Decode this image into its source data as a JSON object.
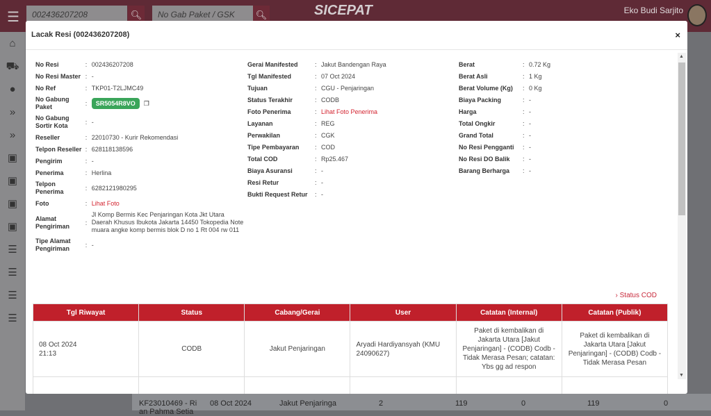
{
  "header": {
    "receipt_search": "002436207208",
    "package_search_placeholder": "No Gab Paket / GSK",
    "logo": "SICEPAT",
    "user_name": "Eko Budi Sarjito"
  },
  "background_row": [
    "KF23010469 - Ri an Pahma Setia",
    "08 Oct 2024",
    "Jakut Penjaringa",
    "2",
    "119",
    "0",
    "119",
    "0"
  ],
  "modal": {
    "title": "Lacak Resi (002436207208)",
    "close": "×",
    "left": [
      {
        "label": "No Resi",
        "value": "002436207208"
      },
      {
        "label": "No Resi Master",
        "value": "-"
      },
      {
        "label": "No Ref",
        "value": "TKP01-T2LJMC49"
      },
      {
        "label": "No Gabung Paket",
        "value": "SR5054R8VO",
        "badge": true
      },
      {
        "label": "No Gabung Sortir Kota",
        "value": "-"
      },
      {
        "label": "Reseller",
        "value": "22010730 - Kurir Rekomendasi"
      },
      {
        "label": "Telpon Reseller",
        "value": "628118138596"
      },
      {
        "label": "Pengirim",
        "value": "-"
      },
      {
        "label": "Penerima",
        "value": "Herlina"
      },
      {
        "label": "Telpon Penerima",
        "value": "6282121980295"
      },
      {
        "label": "Foto",
        "value": "Lihat Foto",
        "link": true
      },
      {
        "label": "Alamat Pengiriman",
        "value": "Jl Komp Bermis Kec Penjaringan Kota Jkt Utara Daerah Khusus Ibukota Jakarta 14450 Tokopedia Note muara angke komp bermis blok D no 1 Rt 004 rw 011"
      },
      {
        "label": "Tipe Alamat Pengiriman",
        "value": "-"
      }
    ],
    "middle": [
      {
        "label": "Gerai Manifested",
        "value": "Jakut Bandengan Raya"
      },
      {
        "label": "Tgl Manifested",
        "value": "07 Oct 2024"
      },
      {
        "label": "Tujuan",
        "value": "CGU - Penjaringan"
      },
      {
        "label": "Status Terakhir",
        "value": "CODB"
      },
      {
        "label": "Foto Penerima",
        "value": "Lihat Foto Penerima",
        "link": true
      },
      {
        "label": "Layanan",
        "value": "REG"
      },
      {
        "label": "Perwakilan",
        "value": "CGK"
      },
      {
        "label": "Tipe Pembayaran",
        "value": "COD"
      },
      {
        "label": "Total COD",
        "value": "Rp25.467"
      },
      {
        "label": "Biaya Asuransi",
        "value": "-"
      },
      {
        "label": "Resi Retur",
        "value": "-"
      },
      {
        "label": "Bukti Request Retur",
        "value": "-"
      }
    ],
    "right": [
      {
        "label": "Berat",
        "value": "0.72 Kg"
      },
      {
        "label": "Berat Asli",
        "value": "1 Kg"
      },
      {
        "label": "Berat Volume (Kg)",
        "value": "0 Kg"
      },
      {
        "label": "Biaya Packing",
        "value": "-"
      },
      {
        "label": "Harga",
        "value": "-"
      },
      {
        "label": "Total Ongkir",
        "value": "-"
      },
      {
        "label": "Grand Total",
        "value": "-"
      },
      {
        "label": "No Resi Pengganti",
        "value": "-"
      },
      {
        "label": "No Resi DO Balik",
        "value": "-"
      },
      {
        "label": "Barang Berharga",
        "value": "-"
      }
    ],
    "status_cod_link": "› Status COD",
    "history": {
      "columns": [
        "Tgl Riwayat",
        "Status",
        "Cabang/Gerai",
        "User",
        "Catatan (Internal)",
        "Catatan (Publik)"
      ],
      "rows": [
        [
          "08 Oct 2024\n21:13",
          "CODB",
          "Jakut Penjaringan",
          "Aryadi Hardiyansyah (KMU 24090627)",
          "Paket di kembalikan di Jakarta Utara [Jakut Penjaringan] - (CODB) Codb - Tidak Merasa Pesan; catatan: Ybs gg ad respon",
          "Paket di kembalikan di Jakarta Utara [Jakut Penjaringan] - (CODB) Codb - Tidak Merasa Pesan"
        ]
      ]
    }
  }
}
